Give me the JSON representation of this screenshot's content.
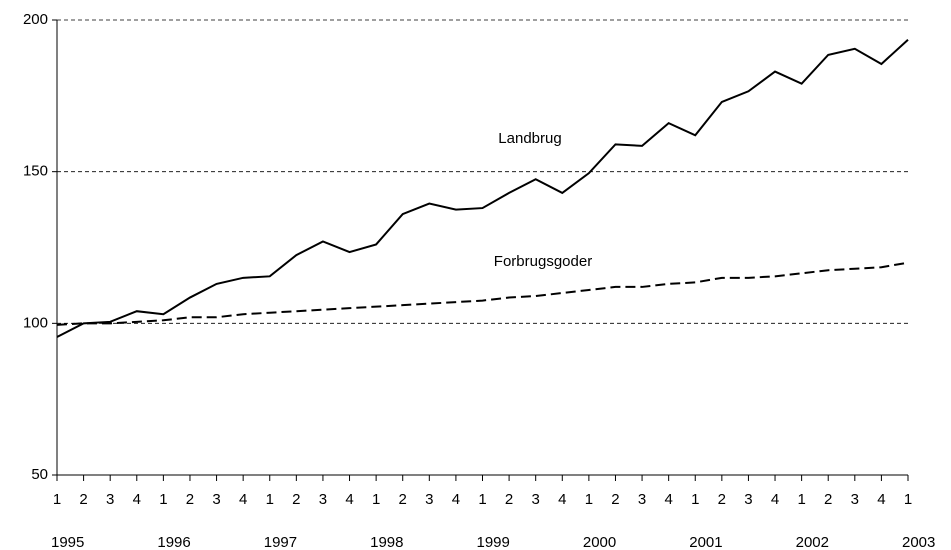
{
  "chart_data": {
    "type": "line",
    "categories": [
      "1",
      "2",
      "3",
      "4",
      "1",
      "2",
      "3",
      "4",
      "1",
      "2",
      "3",
      "4",
      "1",
      "2",
      "3",
      "4",
      "1",
      "2",
      "3",
      "4",
      "1",
      "2",
      "3",
      "4",
      "1",
      "2",
      "3",
      "4",
      "1",
      "2",
      "3",
      "4",
      "1"
    ],
    "year_labels": [
      "1995",
      "1996",
      "1997",
      "1998",
      "1999",
      "2000",
      "2001",
      "2002",
      "2003"
    ],
    "series": [
      {
        "name": "Landbrug",
        "color": "#000000",
        "dash": false,
        "values": [
          95.5,
          100,
          100.5,
          104,
          103,
          108.5,
          113,
          115,
          115.5,
          122.5,
          127,
          123.5,
          126,
          136,
          139.5,
          137.5,
          138,
          143,
          147.5,
          143,
          149.5,
          159,
          158.5,
          166,
          162,
          173,
          176.5,
          183,
          179,
          188.5,
          190.5,
          185.5,
          193.5
        ]
      },
      {
        "name": "Forbrugsgoder",
        "color": "#000000",
        "dash": true,
        "values": [
          99.5,
          100,
          100,
          100.5,
          101,
          102,
          102,
          103,
          103.5,
          104,
          104.5,
          105,
          105.5,
          106,
          106.5,
          107,
          107.5,
          108.5,
          109,
          110,
          111,
          112,
          112,
          113,
          113.5,
          115,
          115,
          115.5,
          116.5,
          117.5,
          118,
          118.5,
          120
        ]
      }
    ],
    "ylim": [
      50,
      200
    ],
    "yticks": [
      50,
      100,
      150,
      200
    ],
    "grid": true
  }
}
